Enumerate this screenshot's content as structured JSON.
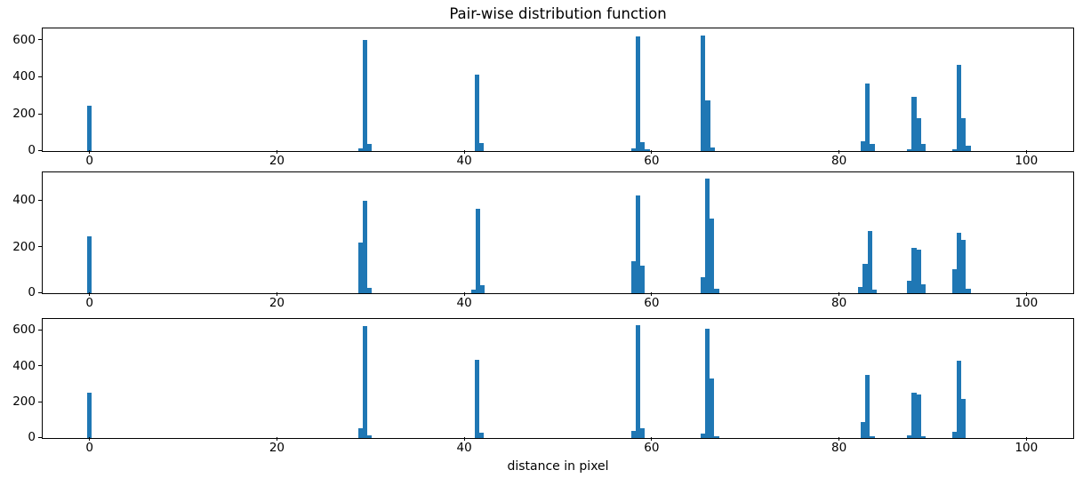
{
  "figure": {
    "title": "Pair-wise distribution function",
    "xlabel": "distance in pixel",
    "bar_color": "#1f77b4",
    "background_color": "#ffffff",
    "axis_color": "#000000"
  },
  "chart_data": [
    {
      "type": "bar",
      "subplot": "top",
      "title": "Pair-wise distribution function",
      "xlabel": "",
      "xlim": [
        -5,
        105
      ],
      "xticks": [
        0,
        20,
        40,
        60,
        80,
        100
      ],
      "ylim": [
        0,
        660
      ],
      "yticks": [
        0,
        200,
        400,
        600
      ],
      "bin_width": 0.5,
      "grid": false,
      "legend": false,
      "bars": [
        [
          0,
          245
        ],
        [
          28.9,
          14
        ],
        [
          29.4,
          600
        ],
        [
          29.9,
          38
        ],
        [
          41.35,
          410
        ],
        [
          41.85,
          45
        ],
        [
          58.05,
          16
        ],
        [
          58.55,
          618
        ],
        [
          59.05,
          48
        ],
        [
          59.55,
          12
        ],
        [
          65.5,
          622
        ],
        [
          66.0,
          275
        ],
        [
          66.5,
          20
        ],
        [
          82.55,
          55
        ],
        [
          83.05,
          365
        ],
        [
          83.55,
          38
        ],
        [
          87.5,
          8
        ],
        [
          88.0,
          290
        ],
        [
          88.5,
          178
        ],
        [
          89.0,
          38
        ],
        [
          92.3,
          10
        ],
        [
          92.8,
          463
        ],
        [
          93.3,
          175
        ],
        [
          93.8,
          30
        ]
      ]
    },
    {
      "type": "bar",
      "subplot": "middle",
      "title": "",
      "xlabel": "",
      "xlim": [
        -5,
        105
      ],
      "xticks": [
        0,
        20,
        40,
        60,
        80,
        100
      ],
      "ylim": [
        0,
        520
      ],
      "yticks": [
        0,
        200,
        400
      ],
      "bin_width": 0.5,
      "grid": false,
      "legend": false,
      "bars": [
        [
          0,
          245
        ],
        [
          28.9,
          218
        ],
        [
          29.4,
          398
        ],
        [
          29.9,
          24
        ],
        [
          40.95,
          16
        ],
        [
          41.45,
          365
        ],
        [
          41.95,
          33
        ],
        [
          58.05,
          138
        ],
        [
          58.55,
          420
        ],
        [
          59.05,
          120
        ],
        [
          65.45,
          70
        ],
        [
          65.95,
          495
        ],
        [
          66.45,
          322
        ],
        [
          66.95,
          18
        ],
        [
          82.3,
          25
        ],
        [
          82.8,
          128
        ],
        [
          83.3,
          267
        ],
        [
          83.8,
          14
        ],
        [
          87.5,
          55
        ],
        [
          88.0,
          196
        ],
        [
          88.5,
          186
        ],
        [
          89.0,
          38
        ],
        [
          92.3,
          103
        ],
        [
          92.8,
          260
        ],
        [
          93.3,
          228
        ],
        [
          93.8,
          20
        ]
      ]
    },
    {
      "type": "bar",
      "subplot": "bottom",
      "title": "",
      "xlabel": "distance in pixel",
      "xlim": [
        -5,
        105
      ],
      "xticks": [
        0,
        20,
        40,
        60,
        80,
        100
      ],
      "ylim": [
        0,
        660
      ],
      "yticks": [
        0,
        200,
        400,
        600
      ],
      "bin_width": 0.5,
      "grid": false,
      "legend": false,
      "bars": [
        [
          0,
          250
        ],
        [
          28.9,
          55
        ],
        [
          29.4,
          620
        ],
        [
          29.9,
          14
        ],
        [
          41.35,
          435
        ],
        [
          41.85,
          28
        ],
        [
          58.05,
          38
        ],
        [
          58.55,
          628
        ],
        [
          59.05,
          52
        ],
        [
          65.45,
          26
        ],
        [
          65.95,
          605
        ],
        [
          66.45,
          328
        ],
        [
          66.95,
          10
        ],
        [
          82.55,
          88
        ],
        [
          83.05,
          350
        ],
        [
          83.55,
          12
        ],
        [
          87.5,
          14
        ],
        [
          88.0,
          250
        ],
        [
          88.5,
          240
        ],
        [
          89.0,
          10
        ],
        [
          92.3,
          35
        ],
        [
          92.8,
          430
        ],
        [
          93.3,
          215
        ]
      ]
    }
  ]
}
